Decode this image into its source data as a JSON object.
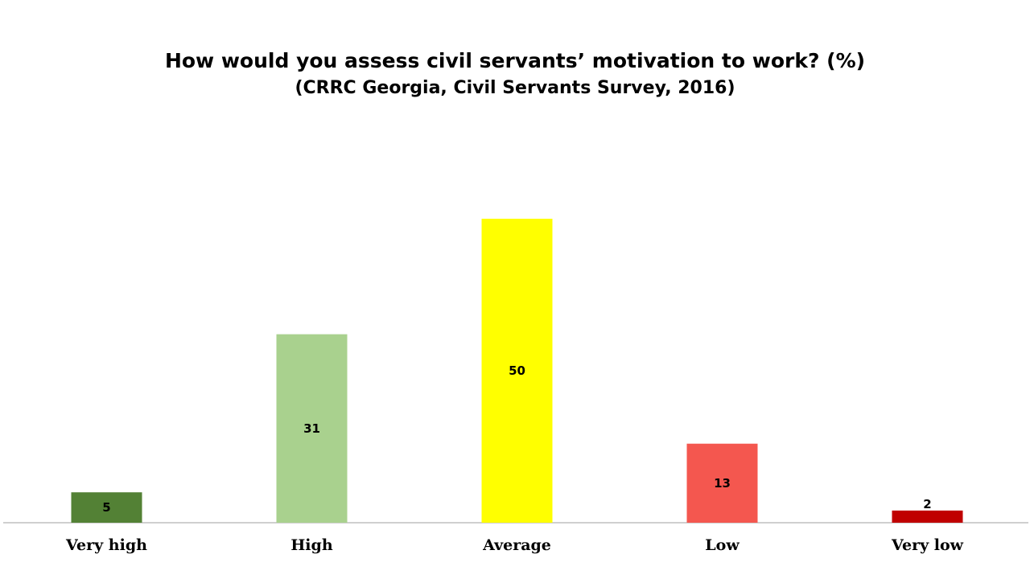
{
  "chart_data": {
    "type": "bar",
    "title": "How would you assess civil servants’ motivation to work? (%)",
    "subtitle": "(CRRC Georgia, Civil Servants Survey, 2016)",
    "categories": [
      "Very high",
      "High",
      "Average",
      "Low",
      "Very low"
    ],
    "values": [
      5,
      31,
      50,
      13,
      2
    ],
    "colors": [
      "#538135",
      "#a9d18e",
      "#ffff00",
      "#f4574f",
      "#c00000"
    ],
    "ylim": [
      0,
      50
    ],
    "grid": false,
    "legend": "none"
  }
}
